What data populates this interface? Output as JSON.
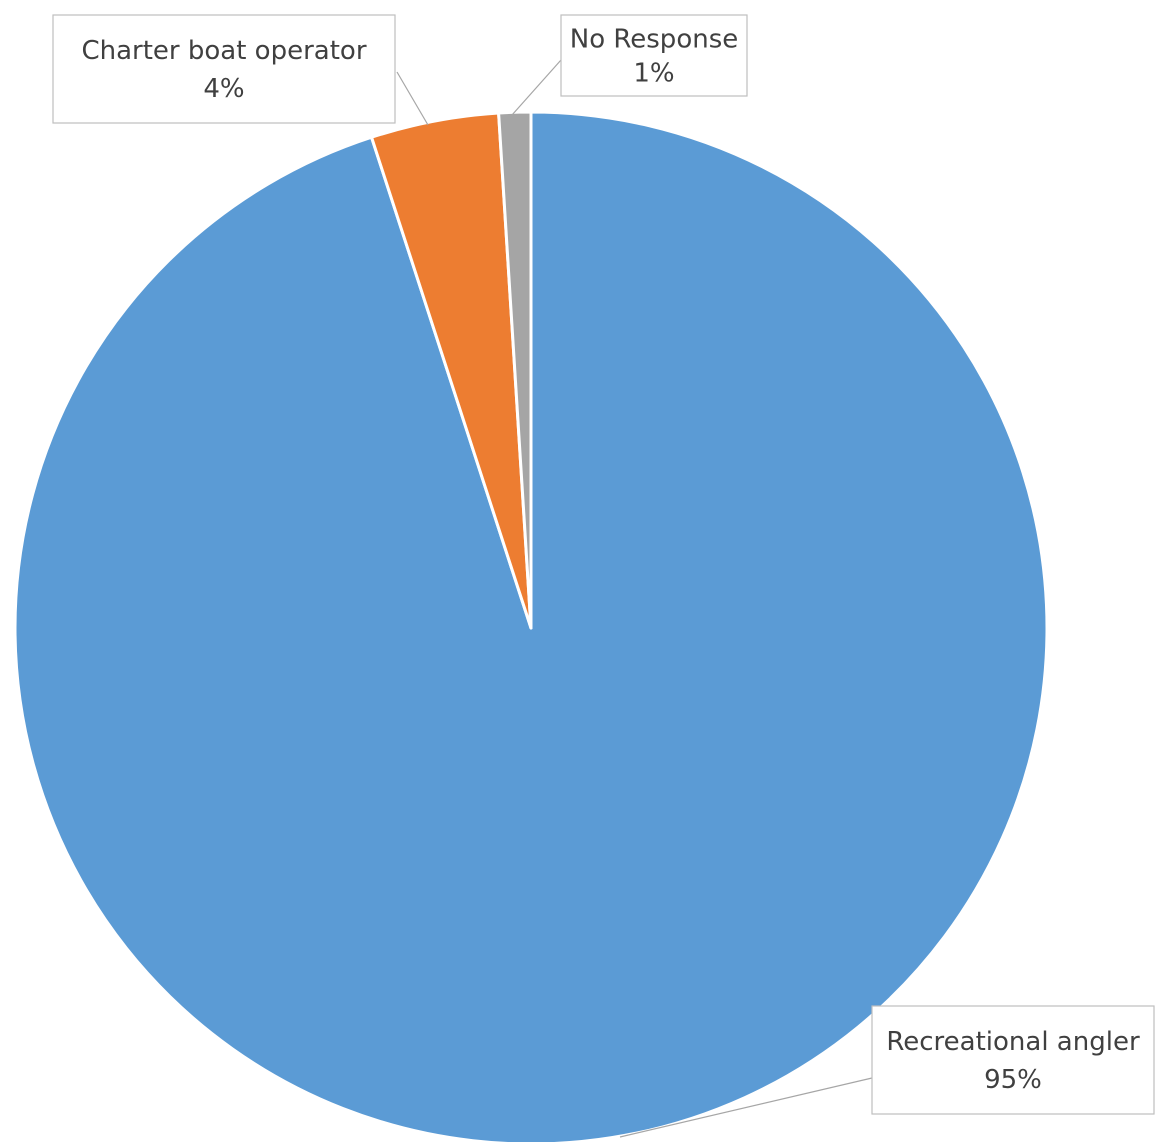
{
  "chart_data": {
    "type": "pie",
    "title": "",
    "start_angle_deg": 0,
    "direction": "clockwise",
    "slices": [
      {
        "label": "Recreational angler",
        "value": 95,
        "value_label": "95%",
        "color": "#5b9bd5"
      },
      {
        "label": "Charter boat operator",
        "value": 4,
        "value_label": "4%",
        "color": "#ed7d31"
      },
      {
        "label": "No Response",
        "value": 1,
        "value_label": "1%",
        "color": "#a5a5a5"
      }
    ],
    "slice_border_color": "#ffffff",
    "label_box_border_color": "#bfbfbf",
    "label_text_color": "#404040",
    "leader_line_color": "#a6a6a6"
  }
}
